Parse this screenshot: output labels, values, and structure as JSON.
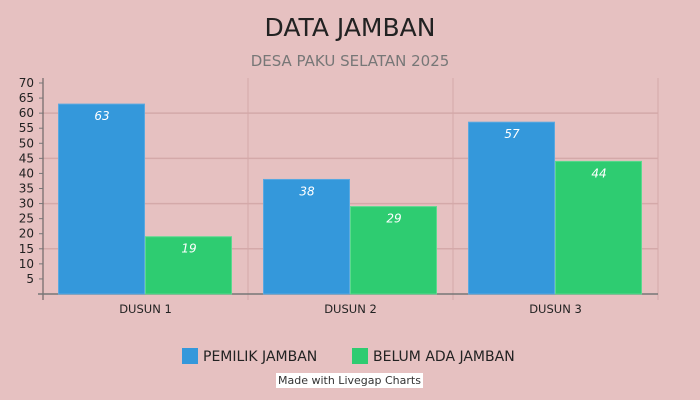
{
  "chart_data": {
    "type": "bar",
    "title": "DATA JAMBAN",
    "subtitle": "DESA PAKU SELATAN 2025",
    "categories": [
      "DUSUN 1",
      "DUSUN 2",
      "DUSUN 3"
    ],
    "series": [
      {
        "name": "PEMILIK JAMBAN",
        "color": "#3498db",
        "values": [
          63,
          38,
          57
        ]
      },
      {
        "name": "BELUM ADA JAMBAN",
        "color": "#2ecc71",
        "values": [
          19,
          29,
          44
        ]
      }
    ],
    "ylim": [
      0,
      70
    ],
    "yticks": [
      5,
      10,
      15,
      20,
      25,
      30,
      35,
      40,
      45,
      50,
      55,
      60,
      65,
      70
    ],
    "gridlines": [
      15,
      30,
      45,
      60
    ],
    "grid": true,
    "legend": "bottom",
    "xlabel": "",
    "ylabel": ""
  },
  "credit": "Made with Livegap Charts"
}
